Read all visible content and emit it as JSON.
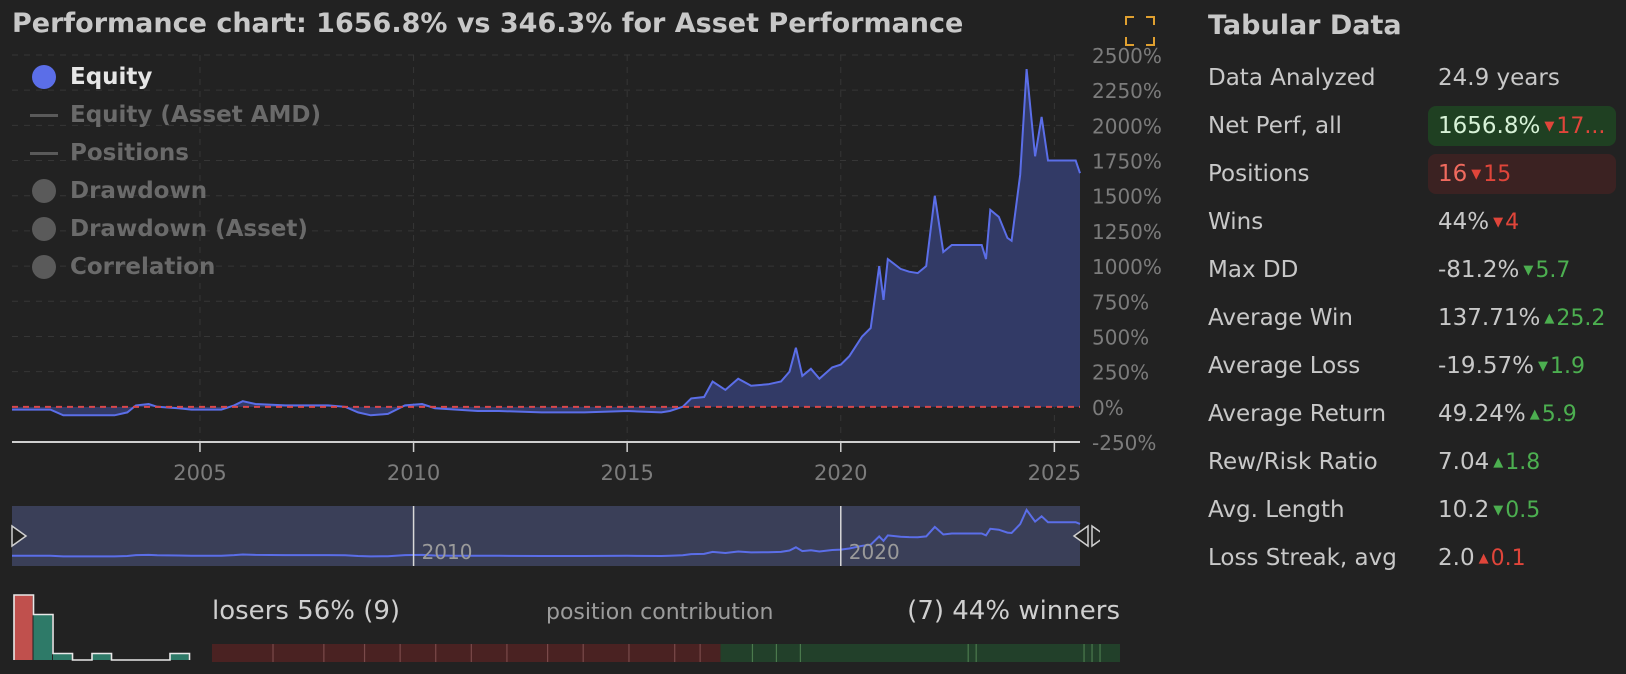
{
  "title": "Performance chart: 1656.8% vs 346.3% for Asset Performance",
  "legend": [
    {
      "label": "Equity",
      "marker": "dot",
      "color": "#5b6ee8",
      "active": true
    },
    {
      "label": "Equity (Asset AMD)",
      "marker": "line",
      "color": "#5a5a5a",
      "active": false
    },
    {
      "label": "Positions",
      "marker": "line",
      "color": "#5a5a5a",
      "active": false
    },
    {
      "label": "Drawdown",
      "marker": "dot",
      "color": "#5a5a5a",
      "active": false
    },
    {
      "label": "Drawdown (Asset)",
      "marker": "dot",
      "color": "#5a5a5a",
      "active": false
    },
    {
      "label": "Correlation",
      "marker": "dot",
      "color": "#5a5a5a",
      "active": false
    }
  ],
  "colors": {
    "equity_line": "#5b6ee8",
    "equity_fill": "#323a66",
    "zero_line": "#d8474b",
    "grid": "#363636",
    "navigator_bg": "#3a3f58",
    "loser": "#c0504d",
    "winner": "#2e7a68",
    "loser_bar": "#4a2222",
    "winner_bar": "#22402a"
  },
  "chart_data": {
    "type": "area",
    "title": "Performance chart: 1656.8% vs 346.3% for Asset Performance",
    "xlabel": "",
    "ylabel": "",
    "xlim": [
      2000.6,
      2025.6
    ],
    "ylim": [
      -250,
      2500
    ],
    "x_ticks": [
      "2005",
      "2010",
      "2015",
      "2020",
      "2025"
    ],
    "y_ticks": [
      "2500%",
      "2250%",
      "2000%",
      "1750%",
      "1500%",
      "1250%",
      "1000%",
      "750%",
      "500%",
      "250%",
      "0%",
      "-250%"
    ],
    "y_tick_values": [
      2500,
      2250,
      2000,
      1750,
      1500,
      1250,
      1000,
      750,
      500,
      250,
      0,
      -250
    ],
    "series": [
      {
        "name": "Equity",
        "points": [
          [
            2000.6,
            -20
          ],
          [
            2001.5,
            -20
          ],
          [
            2001.8,
            -60
          ],
          [
            2003.0,
            -60
          ],
          [
            2003.3,
            -40
          ],
          [
            2003.5,
            10
          ],
          [
            2003.8,
            20
          ],
          [
            2004.0,
            0
          ],
          [
            2004.5,
            -10
          ],
          [
            2004.8,
            -20
          ],
          [
            2005.5,
            -20
          ],
          [
            2005.8,
            10
          ],
          [
            2006.0,
            40
          ],
          [
            2006.3,
            20
          ],
          [
            2007.0,
            10
          ],
          [
            2007.5,
            10
          ],
          [
            2008.0,
            10
          ],
          [
            2008.4,
            0
          ],
          [
            2008.7,
            -40
          ],
          [
            2009.0,
            -60
          ],
          [
            2009.4,
            -50
          ],
          [
            2009.8,
            10
          ],
          [
            2010.2,
            20
          ],
          [
            2010.5,
            -10
          ],
          [
            2011.0,
            -20
          ],
          [
            2011.5,
            -30
          ],
          [
            2012.0,
            -30
          ],
          [
            2013.0,
            -40
          ],
          [
            2014.0,
            -40
          ],
          [
            2015.0,
            -30
          ],
          [
            2015.8,
            -40
          ],
          [
            2016.0,
            -30
          ],
          [
            2016.3,
            0
          ],
          [
            2016.5,
            60
          ],
          [
            2016.8,
            70
          ],
          [
            2017.0,
            180
          ],
          [
            2017.3,
            120
          ],
          [
            2017.6,
            200
          ],
          [
            2017.9,
            150
          ],
          [
            2018.3,
            160
          ],
          [
            2018.6,
            180
          ],
          [
            2018.8,
            250
          ],
          [
            2018.95,
            420
          ],
          [
            2019.1,
            220
          ],
          [
            2019.3,
            270
          ],
          [
            2019.5,
            200
          ],
          [
            2019.8,
            280
          ],
          [
            2020.0,
            300
          ],
          [
            2020.2,
            360
          ],
          [
            2020.5,
            500
          ],
          [
            2020.7,
            560
          ],
          [
            2020.9,
            1000
          ],
          [
            2021.0,
            760
          ],
          [
            2021.1,
            1050
          ],
          [
            2021.4,
            980
          ],
          [
            2021.6,
            960
          ],
          [
            2021.8,
            950
          ],
          [
            2022.0,
            1000
          ],
          [
            2022.2,
            1500
          ],
          [
            2022.4,
            1100
          ],
          [
            2022.6,
            1150
          ],
          [
            2023.0,
            1150
          ],
          [
            2023.3,
            1150
          ],
          [
            2023.4,
            1050
          ],
          [
            2023.5,
            1400
          ],
          [
            2023.7,
            1350
          ],
          [
            2023.9,
            1200
          ],
          [
            2024.0,
            1180
          ],
          [
            2024.2,
            1650
          ],
          [
            2024.35,
            2400
          ],
          [
            2024.55,
            1780
          ],
          [
            2024.7,
            2060
          ],
          [
            2024.85,
            1750
          ],
          [
            2025.0,
            1750
          ],
          [
            2025.3,
            1750
          ],
          [
            2025.5,
            1750
          ],
          [
            2025.6,
            1660
          ]
        ]
      }
    ],
    "baseline": 0
  },
  "navigator": {
    "labels": [
      "2010",
      "2020"
    ]
  },
  "table_title": "Tabular Data",
  "stats": [
    {
      "label": "Data Analyzed",
      "value": "24.9 years",
      "delta": "",
      "dir": "",
      "style": ""
    },
    {
      "label": "Net Perf, all",
      "value": "1656.8%",
      "delta": "17...",
      "dir": "down",
      "style": "green"
    },
    {
      "label": "Positions",
      "value": "16",
      "delta": "15",
      "dir": "down",
      "style": "red"
    },
    {
      "label": "Wins",
      "value": "44%",
      "delta": "4",
      "dir": "down",
      "style": ""
    },
    {
      "label": "Max DD",
      "value": "-81.2%",
      "delta": "5.7",
      "dir": "downgood",
      "style": ""
    },
    {
      "label": "Average Win",
      "value": "137.71%",
      "delta": "25.2",
      "dir": "up",
      "style": ""
    },
    {
      "label": "Average Loss",
      "value": "-19.57%",
      "delta": "1.9",
      "dir": "downgood",
      "style": ""
    },
    {
      "label": "Average Return",
      "value": "49.24%",
      "delta": "5.9",
      "dir": "up",
      "style": ""
    },
    {
      "label": "Rew/Risk Ratio",
      "value": "7.04",
      "delta": "1.8",
      "dir": "up",
      "style": ""
    },
    {
      "label": "Avg. Length",
      "value": "10.2",
      "delta": "0.5",
      "dir": "downgood",
      "style": ""
    },
    {
      "label": "Loss Streak, avg",
      "value": "2.0",
      "delta": "0.1",
      "dir": "upbad",
      "style": ""
    }
  ],
  "contribution": {
    "losers_label": "losers 56% (9)",
    "middle_label": "position contribution",
    "winners_label": "(7) 44% winners",
    "loser_fraction": 0.56,
    "histogram": [
      10,
      7,
      1,
      0,
      1,
      0,
      0,
      0,
      1
    ],
    "winners_histogram": [
      0,
      7,
      1,
      0,
      1,
      0,
      0,
      0,
      1
    ]
  }
}
